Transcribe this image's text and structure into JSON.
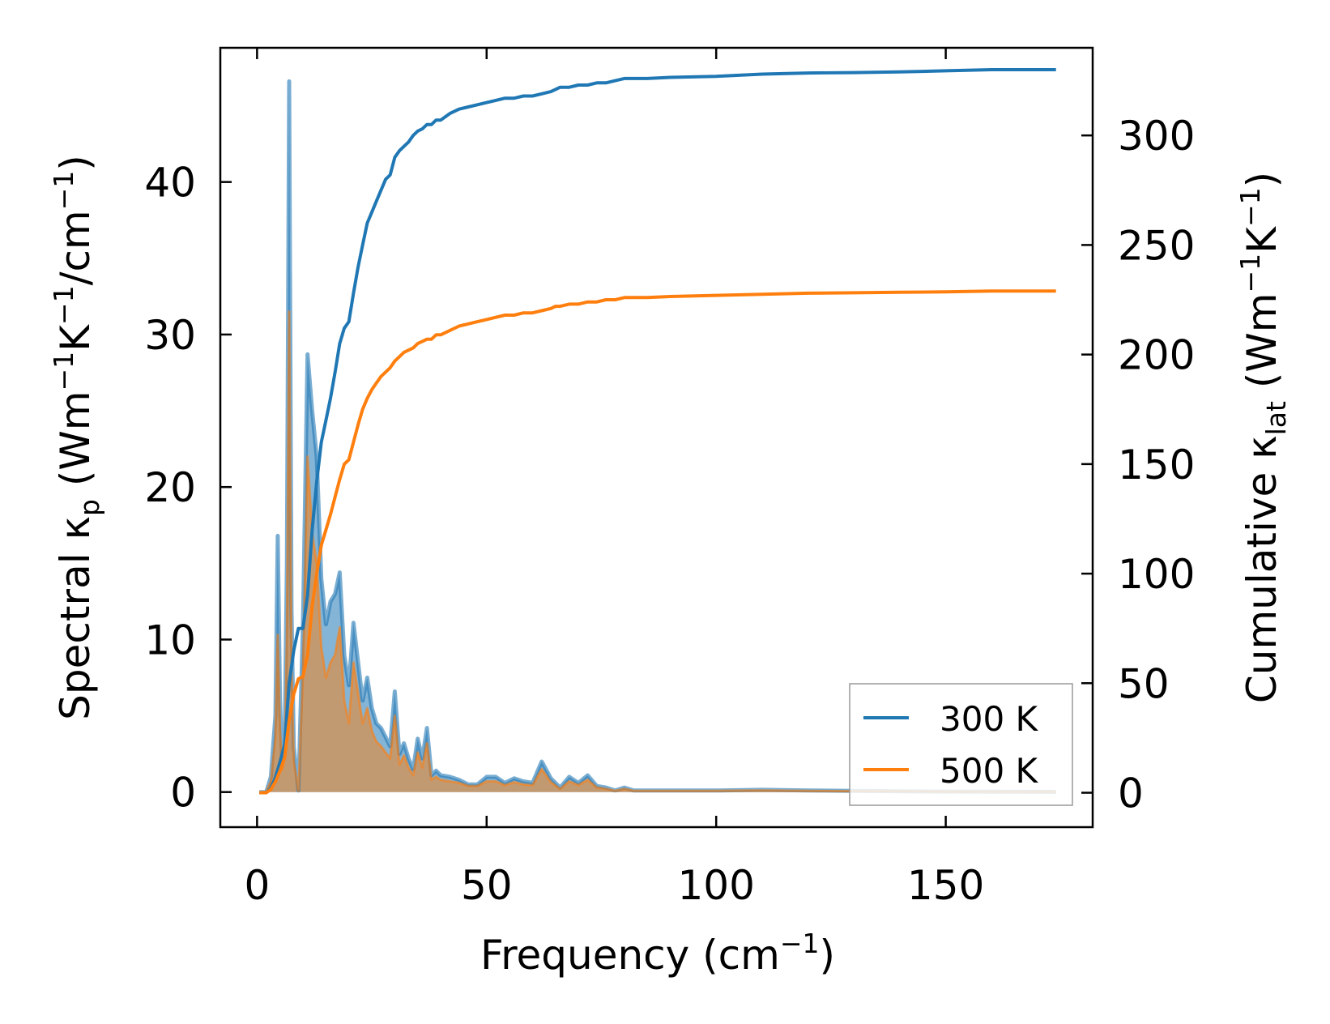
{
  "chart_data": {
    "type": "line",
    "xlabel": {
      "main": "Frequency (cm",
      "sup": "−1",
      "tail": ")"
    },
    "ylabel_left": {
      "t1": "Spectral κ",
      "sub": "p",
      "t2": " (Wm",
      "sup1": "−1",
      "t3": "K",
      "sup2": "−1",
      "t4": "/cm",
      "sup3": "−1",
      "t5": ")"
    },
    "ylabel_right": {
      "t1": "Cumulative κ",
      "sub": "lat",
      "t2": " (Wm",
      "sup1": "−1",
      "t3": "K",
      "sup2": "−1",
      "t4": ")"
    },
    "xlim": [
      -8,
      182
    ],
    "ylim_left": [
      -2.3,
      48.8
    ],
    "ylim_right": [
      -15.7,
      340
    ],
    "xticks": [
      0,
      50,
      100,
      150
    ],
    "yticks_left": [
      0,
      10,
      20,
      30,
      40
    ],
    "yticks_right": [
      0,
      50,
      100,
      150,
      200,
      250,
      300
    ],
    "legend": {
      "position": "lower-right",
      "entries": [
        "300 K",
        "500 K"
      ]
    },
    "colors": {
      "300 K": "#1f77b4",
      "500 K": "#ff7f0e"
    },
    "spectral_x": [
      0.5,
      2,
      3,
      4,
      4.5,
      5,
      5.5,
      6,
      6.5,
      7,
      7.5,
      8,
      9,
      10,
      11,
      12,
      13,
      14,
      15,
      16,
      17,
      18,
      19,
      20,
      21,
      22,
      23,
      24,
      25,
      26,
      27,
      28,
      29,
      30,
      31,
      32,
      33,
      34,
      35,
      36,
      37,
      38,
      39,
      40,
      42,
      44,
      46,
      48,
      50,
      52,
      54,
      56,
      58,
      60,
      62,
      64,
      66,
      68,
      70,
      72,
      74,
      76,
      78,
      80,
      82,
      84,
      86,
      88,
      90,
      100,
      110,
      120,
      130,
      140,
      150,
      160,
      174
    ],
    "spectral_300K": [
      0,
      0,
      1,
      5,
      16.8,
      6,
      2,
      3,
      15,
      46.6,
      12,
      3,
      0.1,
      11,
      28.7,
      25,
      22,
      14,
      11,
      12.5,
      13,
      14.4,
      9,
      7,
      11.1,
      8.5,
      6,
      7.5,
      5.5,
      4.5,
      4.2,
      3.6,
      3,
      6.6,
      2.5,
      3.2,
      2.2,
      1.5,
      3.5,
      2.2,
      4.2,
      1.1,
      1.4,
      1.1,
      1,
      0.8,
      0.5,
      0.5,
      1,
      1,
      0.6,
      0.9,
      0.7,
      0.6,
      2,
      0.9,
      0.3,
      1,
      0.6,
      1.1,
      0.4,
      0.3,
      0.1,
      0.3,
      0.1,
      0.1,
      0.1,
      0.1,
      0.1,
      0.1,
      0.15,
      0.1,
      0.08,
      0.05,
      0.03,
      0.02,
      0.01
    ],
    "spectral_500K": [
      0,
      0,
      0.7,
      3.5,
      10.3,
      4,
      1.5,
      2.2,
      10,
      31.5,
      8,
      2,
      0.1,
      7.5,
      22,
      17,
      15,
      9.5,
      7.5,
      8.5,
      9,
      10.8,
      6,
      4.5,
      8.5,
      6.5,
      4.5,
      5.5,
      4,
      3.3,
      3,
      2.6,
      2.2,
      5,
      1.8,
      2.4,
      1.6,
      1.1,
      2.6,
      1.6,
      3.2,
      0.8,
      1,
      0.8,
      0.7,
      0.6,
      0.4,
      0.4,
      0.7,
      0.7,
      0.45,
      0.65,
      0.5,
      0.45,
      1.5,
      0.65,
      0.2,
      0.7,
      0.45,
      0.8,
      0.3,
      0.2,
      0.08,
      0.2,
      0.08,
      0.08,
      0.08,
      0.08,
      0.08,
      0.08,
      0.1,
      0.08,
      0.06,
      0.04,
      0.02,
      0.015,
      0.01
    ],
    "cumulative_x": [
      0.5,
      2,
      3,
      4,
      5,
      6,
      7,
      8,
      9,
      10,
      11,
      12,
      13,
      14,
      15,
      16,
      17,
      18,
      19,
      20,
      21,
      22,
      23,
      24,
      25,
      26,
      27,
      28,
      29,
      30,
      31,
      32,
      33,
      34,
      35,
      36,
      37,
      38,
      39,
      40,
      42,
      44,
      46,
      48,
      50,
      52,
      54,
      56,
      58,
      60,
      62,
      64,
      65,
      66,
      68,
      70,
      72,
      74,
      76,
      78,
      80,
      85,
      90,
      100,
      110,
      120,
      130,
      140,
      150,
      160,
      174
    ],
    "cumulative_300K": [
      0,
      0,
      2,
      7,
      14,
      22,
      50,
      65,
      75,
      75,
      90,
      120,
      142,
      160,
      170,
      180,
      192,
      205,
      212,
      215,
      228,
      240,
      250,
      260,
      265,
      270,
      275,
      280,
      282,
      290,
      293,
      295,
      297,
      300,
      302,
      303,
      305,
      305,
      307,
      307,
      310,
      312,
      313,
      314,
      315,
      316,
      317,
      317,
      318,
      318,
      319,
      320,
      321,
      322,
      322,
      323,
      323,
      324,
      324,
      325,
      326,
      326,
      326.5,
      327,
      328,
      328.5,
      328.7,
      329,
      329.5,
      330,
      330
    ],
    "cumulative_500K": [
      0,
      0,
      1.5,
      5,
      10,
      16,
      33,
      45,
      52,
      53,
      63,
      85,
      100,
      113,
      120,
      127,
      135,
      143,
      150,
      152,
      160,
      168,
      175,
      180,
      184,
      187,
      190,
      192,
      194,
      197,
      199,
      201,
      202,
      203,
      205,
      206,
      207,
      207,
      209,
      209,
      211,
      213,
      214,
      215,
      216,
      217,
      218,
      218,
      219,
      219,
      220,
      221,
      222,
      222,
      223,
      223,
      224,
      224,
      225,
      225,
      226,
      226,
      226.5,
      227,
      227.5,
      228,
      228.2,
      228.4,
      228.6,
      229,
      229
    ]
  }
}
